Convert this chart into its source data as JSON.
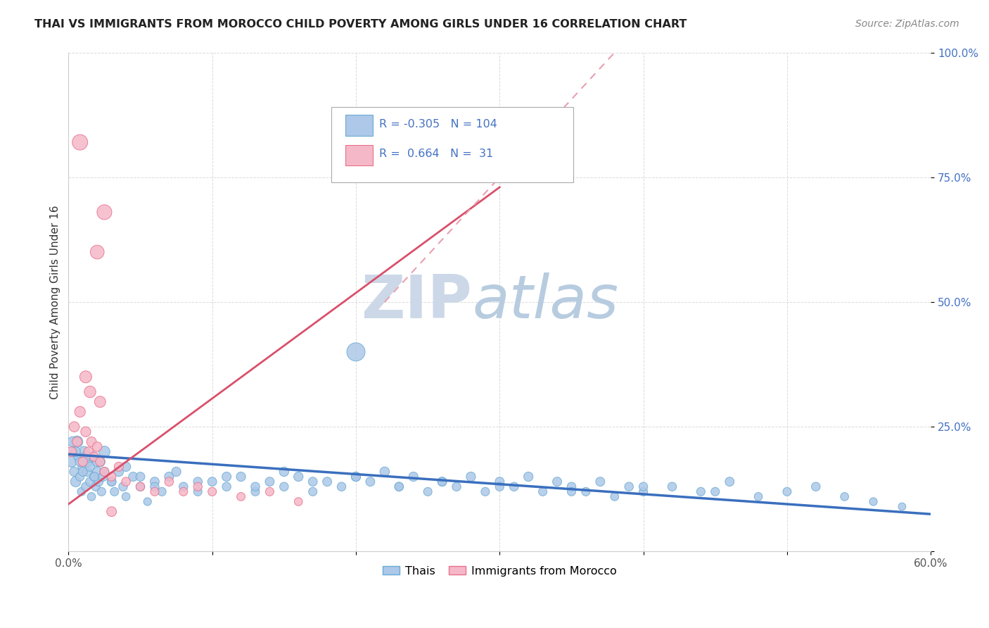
{
  "title": "THAI VS IMMIGRANTS FROM MOROCCO CHILD POVERTY AMONG GIRLS UNDER 16 CORRELATION CHART",
  "source": "Source: ZipAtlas.com",
  "ylabel": "Child Poverty Among Girls Under 16",
  "xlim": [
    0,
    0.6
  ],
  "ylim": [
    0,
    1.0
  ],
  "thai_R": -0.305,
  "thai_N": 104,
  "morocco_R": 0.664,
  "morocco_N": 31,
  "thai_color": "#adc8e8",
  "thai_edge_color": "#6aaad4",
  "morocco_color": "#f5b8c8",
  "morocco_edge_color": "#e8708a",
  "trend_thai_color": "#3a6fbe",
  "trend_morocco_color": "#d9506a",
  "trend_morocco_dash_color": "#e8a0b0",
  "watermark_zip_color": "#ccd8e8",
  "watermark_atlas_color": "#b8cce0",
  "background_color": "#ffffff",
  "grid_color": "#cccccc",
  "tick_label_color": "#4472c4",
  "title_color": "#222222",
  "ylabel_color": "#333333",
  "thai_scatter_x": [
    0.002,
    0.003,
    0.004,
    0.005,
    0.006,
    0.007,
    0.008,
    0.009,
    0.01,
    0.011,
    0.012,
    0.013,
    0.014,
    0.015,
    0.016,
    0.017,
    0.018,
    0.019,
    0.02,
    0.021,
    0.022,
    0.023,
    0.024,
    0.025,
    0.03,
    0.032,
    0.035,
    0.038,
    0.04,
    0.045,
    0.05,
    0.055,
    0.06,
    0.065,
    0.07,
    0.08,
    0.09,
    0.1,
    0.11,
    0.12,
    0.13,
    0.14,
    0.15,
    0.16,
    0.17,
    0.18,
    0.19,
    0.2,
    0.21,
    0.22,
    0.23,
    0.24,
    0.25,
    0.26,
    0.27,
    0.28,
    0.29,
    0.3,
    0.31,
    0.32,
    0.33,
    0.34,
    0.35,
    0.36,
    0.37,
    0.38,
    0.39,
    0.4,
    0.42,
    0.44,
    0.46,
    0.48,
    0.5,
    0.52,
    0.54,
    0.56,
    0.58,
    0.003,
    0.005,
    0.008,
    0.01,
    0.012,
    0.015,
    0.018,
    0.02,
    0.025,
    0.03,
    0.04,
    0.05,
    0.06,
    0.075,
    0.09,
    0.11,
    0.13,
    0.15,
    0.17,
    0.2,
    0.23,
    0.26,
    0.3,
    0.35,
    0.4,
    0.45,
    0.2
  ],
  "thai_scatter_y": [
    0.18,
    0.2,
    0.16,
    0.14,
    0.22,
    0.19,
    0.15,
    0.12,
    0.17,
    0.2,
    0.13,
    0.16,
    0.18,
    0.14,
    0.11,
    0.19,
    0.15,
    0.13,
    0.16,
    0.14,
    0.18,
    0.12,
    0.15,
    0.2,
    0.14,
    0.12,
    0.16,
    0.13,
    0.11,
    0.15,
    0.13,
    0.1,
    0.14,
    0.12,
    0.15,
    0.13,
    0.12,
    0.14,
    0.13,
    0.15,
    0.12,
    0.14,
    0.13,
    0.15,
    0.12,
    0.14,
    0.13,
    0.15,
    0.14,
    0.16,
    0.13,
    0.15,
    0.12,
    0.14,
    0.13,
    0.15,
    0.12,
    0.14,
    0.13,
    0.15,
    0.12,
    0.14,
    0.13,
    0.12,
    0.14,
    0.11,
    0.13,
    0.12,
    0.13,
    0.12,
    0.14,
    0.11,
    0.12,
    0.13,
    0.11,
    0.1,
    0.09,
    0.22,
    0.2,
    0.18,
    0.16,
    0.19,
    0.17,
    0.15,
    0.18,
    0.16,
    0.14,
    0.17,
    0.15,
    0.13,
    0.16,
    0.14,
    0.15,
    0.13,
    0.16,
    0.14,
    0.15,
    0.13,
    0.14,
    0.13,
    0.12,
    0.13,
    0.12,
    0.4
  ],
  "thai_scatter_size": [
    120,
    100,
    90,
    110,
    140,
    100,
    80,
    70,
    100,
    120,
    80,
    90,
    100,
    85,
    70,
    110,
    90,
    80,
    95,
    85,
    105,
    75,
    88,
    130,
    85,
    75,
    95,
    80,
    70,
    88,
    80,
    65,
    85,
    75,
    90,
    80,
    75,
    85,
    80,
    90,
    75,
    85,
    80,
    90,
    75,
    85,
    80,
    90,
    85,
    95,
    80,
    90,
    75,
    85,
    80,
    90,
    75,
    85,
    80,
    90,
    75,
    85,
    80,
    75,
    85,
    70,
    80,
    75,
    80,
    75,
    85,
    70,
    75,
    80,
    70,
    65,
    60,
    110,
    100,
    90,
    85,
    95,
    88,
    80,
    95,
    88,
    80,
    92,
    85,
    78,
    90,
    82,
    88,
    80,
    92,
    83,
    88,
    78,
    83,
    78,
    75,
    78,
    75,
    350
  ],
  "morocco_scatter_x": [
    0.002,
    0.004,
    0.006,
    0.008,
    0.01,
    0.012,
    0.014,
    0.016,
    0.018,
    0.02,
    0.022,
    0.025,
    0.03,
    0.035,
    0.04,
    0.05,
    0.06,
    0.07,
    0.08,
    0.09,
    0.1,
    0.12,
    0.14,
    0.16,
    0.02,
    0.025,
    0.008,
    0.012,
    0.03,
    0.015,
    0.022
  ],
  "morocco_scatter_y": [
    0.2,
    0.25,
    0.22,
    0.28,
    0.18,
    0.24,
    0.2,
    0.22,
    0.19,
    0.21,
    0.18,
    0.16,
    0.15,
    0.17,
    0.14,
    0.13,
    0.12,
    0.14,
    0.12,
    0.13,
    0.12,
    0.11,
    0.12,
    0.1,
    0.6,
    0.68,
    0.82,
    0.35,
    0.08,
    0.32,
    0.3
  ],
  "morocco_scatter_size": [
    100,
    110,
    95,
    120,
    90,
    105,
    95,
    100,
    90,
    95,
    88,
    85,
    80,
    88,
    80,
    78,
    75,
    82,
    75,
    78,
    75,
    72,
    75,
    70,
    200,
    230,
    250,
    150,
    100,
    140,
    130
  ],
  "thai_trend_x0": 0.0,
  "thai_trend_y0": 0.195,
  "thai_trend_x1": 0.6,
  "thai_trend_y1": 0.075,
  "morocco_trend_solid_x0": 0.0,
  "morocco_trend_solid_y0": 0.095,
  "morocco_trend_solid_x1": 0.3,
  "morocco_trend_solid_y1": 0.73,
  "morocco_trend_dash_x0": 0.22,
  "morocco_trend_dash_y0": 0.5,
  "morocco_trend_dash_x1": 0.38,
  "morocco_trend_dash_y1": 1.0
}
